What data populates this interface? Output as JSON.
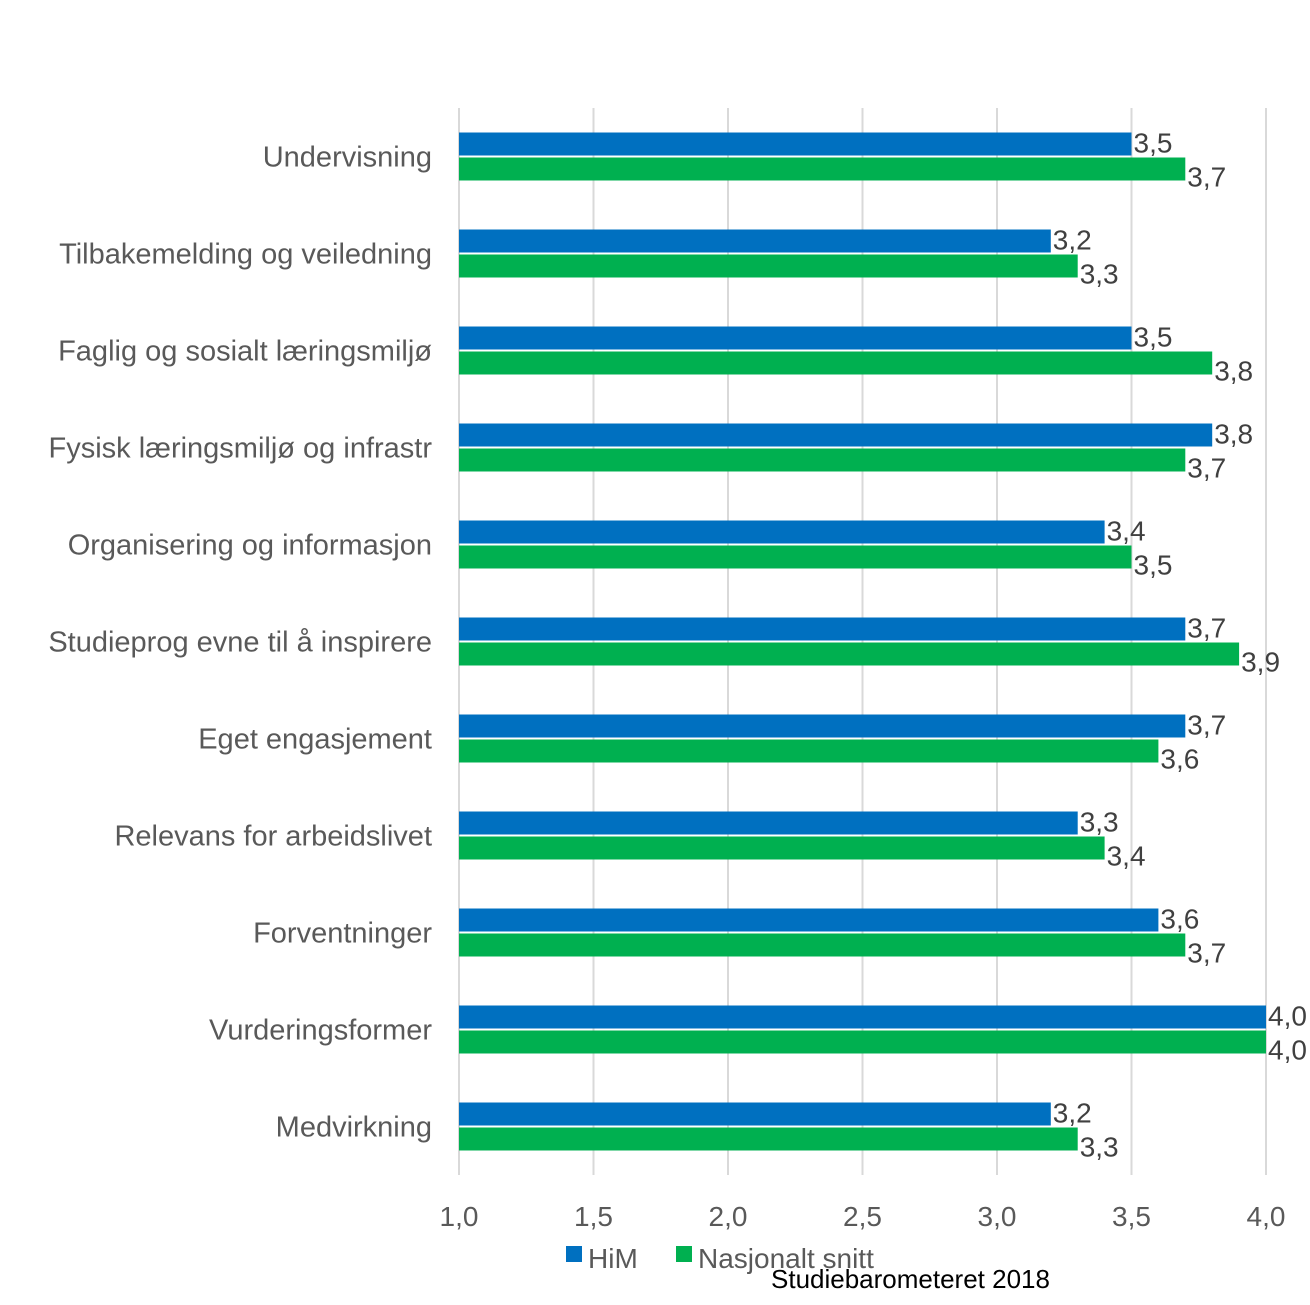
{
  "chart_data": {
    "type": "bar",
    "orientation": "horizontal",
    "categories": [
      "Undervisning",
      "Tilbakemelding og veiledning",
      "Faglig og sosialt læringsmiljø",
      "Fysisk læringsmiljø og infrastr",
      "Organisering og informasjon",
      "Studieprog evne til å inspirere",
      "Eget engasjement",
      "Relevans for arbeidslivet",
      "Forventninger",
      "Vurderingsformer",
      "Medvirkning"
    ],
    "series": [
      {
        "name": "HiM",
        "color": "#0070c0",
        "values": [
          3.5,
          3.2,
          3.5,
          3.8,
          3.4,
          3.7,
          3.7,
          3.3,
          3.6,
          4.0,
          3.2
        ],
        "labels": [
          "3,5",
          "3,2",
          "3,5",
          "3,8",
          "3,4",
          "3,7",
          "3,7",
          "3,3",
          "3,6",
          "4,0",
          "3,2"
        ]
      },
      {
        "name": "Nasjonalt snitt",
        "color": "#00b050",
        "values": [
          3.7,
          3.3,
          3.8,
          3.7,
          3.5,
          3.9,
          3.6,
          3.4,
          3.7,
          4.0,
          3.3
        ],
        "labels": [
          "3,7",
          "3,3",
          "3,8",
          "3,7",
          "3,5",
          "3,9",
          "3,6",
          "3,4",
          "3,7",
          "4,0",
          "3,3"
        ]
      }
    ],
    "xlim": [
      1.0,
      4.0
    ],
    "xticks": [
      1.0,
      1.5,
      2.0,
      2.5,
      3.0,
      3.5,
      4.0
    ],
    "xtick_labels": [
      "1,0",
      "1,5",
      "2,0",
      "2,5",
      "3,0",
      "3,5",
      "4,0"
    ],
    "grid": "vertical",
    "legend_position": "bottom",
    "source_note": "Studiebarometeret 2018"
  }
}
